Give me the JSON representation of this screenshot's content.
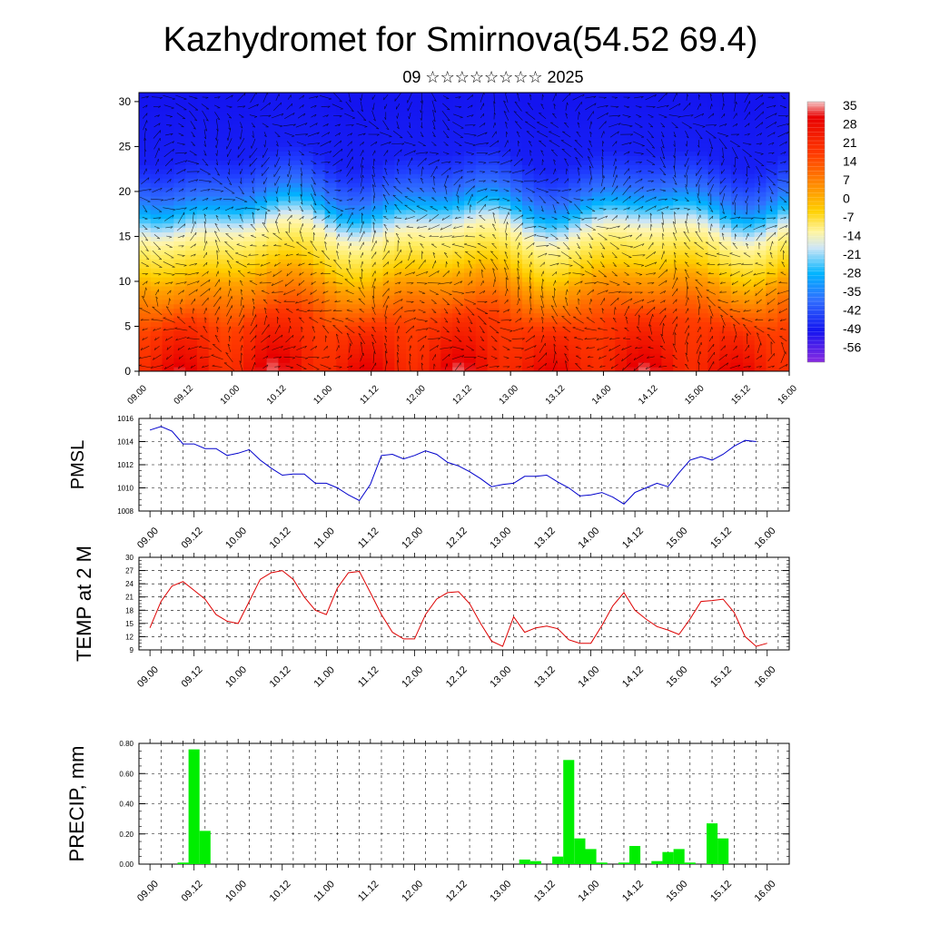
{
  "title": "Kazhydromet for Smirnova(54.52 69.4)",
  "subtitle": "09 ☆☆☆☆☆☆☆☆ 2025",
  "time_ticks": [
    "09.00",
    "09.12",
    "10.00",
    "10.12",
    "11.00",
    "11.12",
    "12.00",
    "12.12",
    "13.00",
    "13.12",
    "14.00",
    "14.12",
    "15.00",
    "15.12",
    "16.00"
  ],
  "chart_data": [
    {
      "id": "cross-section",
      "type": "heatmap",
      "description_axes": "time vs height",
      "x_range": [
        0,
        168
      ],
      "y_range": [
        0,
        31
      ],
      "y_ticks": [
        0,
        5,
        10,
        15,
        20,
        25,
        30
      ],
      "colorbar_labels": [
        "35",
        "28",
        "21",
        "14",
        "7",
        "0",
        "-7",
        "-14",
        "-21",
        "-28",
        "-35",
        "-42",
        "-49",
        "-56"
      ],
      "levels_temp": [
        {
          "height": 0,
          "temp": 28
        },
        {
          "height": 5,
          "temp": 22
        },
        {
          "height": 10,
          "temp": 12
        },
        {
          "height": 14,
          "temp": 0
        },
        {
          "height": 17,
          "temp": -15
        },
        {
          "height": 21,
          "temp": -35
        },
        {
          "height": 24,
          "temp": -52
        },
        {
          "height": 31,
          "temp": -56
        }
      ],
      "wind_arrows": true
    },
    {
      "id": "pmsl",
      "type": "line",
      "ylabel": "PMSL",
      "ylim": [
        1008,
        1016
      ],
      "y_ticks": [
        "1008",
        "1010",
        "1012",
        "1014",
        "1016"
      ],
      "color": "#0000cc",
      "x": [
        0,
        3,
        6,
        9,
        12,
        15,
        18,
        21,
        24,
        27,
        30,
        33,
        36,
        39,
        42,
        45,
        48,
        51,
        54,
        57,
        60,
        63,
        66,
        69,
        72,
        75,
        78,
        81,
        84,
        87,
        90,
        93,
        96,
        99,
        102,
        105,
        108,
        111,
        114,
        117,
        120,
        123,
        126,
        129,
        132,
        135,
        138,
        141,
        144,
        147,
        150,
        153,
        156,
        159,
        162,
        165
      ],
      "values": [
        1015,
        1015.3,
        1014.9,
        1013.8,
        1013.8,
        1013.4,
        1013.4,
        1012.8,
        1013,
        1013.3,
        1012.4,
        1011.7,
        1011.1,
        1011.2,
        1011.2,
        1010.4,
        1010.4,
        1010,
        1009.4,
        1008.9,
        1010.3,
        1012.8,
        1012.9,
        1012.5,
        1012.8,
        1013.2,
        1012.9,
        1012.2,
        1011.9,
        1011.4,
        1010.8,
        1010.1,
        1010.3,
        1010.4,
        1011,
        1011,
        1011.1,
        1010.5,
        1010,
        1009.3,
        1009.4,
        1009.6,
        1009.2,
        1008.6,
        1009.6,
        1010,
        1010.4,
        1010.1,
        1011.3,
        1012.4,
        1012.7,
        1012.4,
        1012.9,
        1013.6,
        1014.1,
        1014
      ]
    },
    {
      "id": "temp2m",
      "type": "line",
      "ylabel": "TEMP at 2 M",
      "ylim": [
        9,
        30
      ],
      "y_ticks": [
        "9",
        "12",
        "15",
        "18",
        "21",
        "24",
        "27",
        "30"
      ],
      "color": "#dd0000",
      "x": [
        0,
        3,
        6,
        9,
        12,
        15,
        18,
        21,
        24,
        27,
        30,
        33,
        36,
        39,
        42,
        45,
        48,
        51,
        54,
        57,
        60,
        63,
        66,
        69,
        72,
        75,
        78,
        81,
        84,
        87,
        90,
        93,
        96,
        99,
        102,
        105,
        108,
        111,
        114,
        117,
        120,
        123,
        126,
        129,
        132,
        135,
        138,
        141,
        144,
        147,
        150,
        153,
        156,
        159,
        162,
        165,
        168
      ],
      "values": [
        14,
        20,
        23.5,
        24.5,
        22.5,
        20.5,
        17,
        15.5,
        15,
        20,
        25,
        26.5,
        27,
        25,
        21,
        18,
        17,
        23,
        26.5,
        26.8,
        22,
        17,
        13,
        11.5,
        11.5,
        17,
        20.5,
        22,
        22.2,
        19.5,
        15,
        11,
        9.8,
        16.5,
        13,
        14,
        14.4,
        13.8,
        11.3,
        10.5,
        10.5,
        14.5,
        19,
        22,
        18,
        16,
        14.3,
        13.5,
        12.5,
        16,
        20,
        20.2,
        20.5,
        17.5,
        12,
        9.8,
        10.5
      ]
    },
    {
      "id": "precip",
      "type": "bar",
      "ylabel": "PRECIP, mm",
      "ylim": [
        0,
        0.8
      ],
      "y_ticks": [
        "0.00",
        "0.20",
        "0.40",
        "0.60",
        "0.80"
      ],
      "color": "#00ee00",
      "bar_width_hours": 3,
      "bars": [
        {
          "x": 9,
          "value": 0.01
        },
        {
          "x": 12,
          "value": 0.76
        },
        {
          "x": 15,
          "value": 0.22
        },
        {
          "x": 102,
          "value": 0.03
        },
        {
          "x": 105,
          "value": 0.02
        },
        {
          "x": 111,
          "value": 0.05
        },
        {
          "x": 114,
          "value": 0.69
        },
        {
          "x": 117,
          "value": 0.17
        },
        {
          "x": 120,
          "value": 0.1
        },
        {
          "x": 123,
          "value": 0.01
        },
        {
          "x": 129,
          "value": 0.01
        },
        {
          "x": 132,
          "value": 0.12
        },
        {
          "x": 138,
          "value": 0.02
        },
        {
          "x": 141,
          "value": 0.08
        },
        {
          "x": 144,
          "value": 0.1
        },
        {
          "x": 147,
          "value": 0.01
        },
        {
          "x": 153,
          "value": 0.27
        },
        {
          "x": 156,
          "value": 0.17
        }
      ]
    }
  ]
}
